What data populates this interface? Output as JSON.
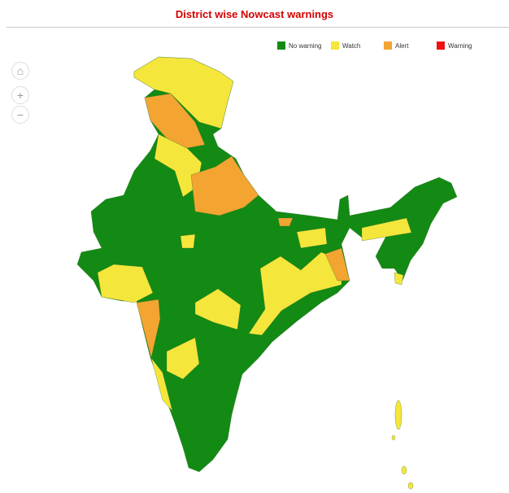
{
  "header": {
    "title": "District wise Nowcast warnings"
  },
  "legend": [
    {
      "label": "No warning",
      "color": "#138a13"
    },
    {
      "label": "Watch",
      "color": "#f5e63c"
    },
    {
      "label": "Alert",
      "color": "#f3a431"
    },
    {
      "label": "Warning",
      "color": "#ee1111"
    }
  ]
}
